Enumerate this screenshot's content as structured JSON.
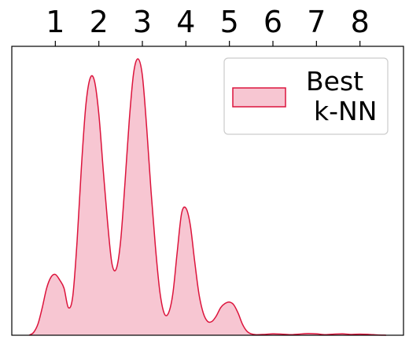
{
  "chart_data": {
    "type": "area",
    "title": "",
    "xlabel": "",
    "ylabel": "",
    "x_ticks": [
      "1",
      "2",
      "3",
      "4",
      "5",
      "6",
      "7",
      "8"
    ],
    "xlim": [
      0.0,
      9.0
    ],
    "ylim": [
      0,
      1.0
    ],
    "grid": false,
    "legend_position": "top-right",
    "series": [
      {
        "name": "Best k-NN",
        "color": "#dc143c",
        "fill_color": "#f7c6d2",
        "x": [
          0.4,
          0.5,
          0.6,
          0.7,
          0.8,
          0.9,
          1.0,
          1.1,
          1.2,
          1.3,
          1.4,
          1.5,
          1.6,
          1.7,
          1.8,
          1.9,
          2.0,
          2.1,
          2.2,
          2.3,
          2.4,
          2.5,
          2.6,
          2.7,
          2.8,
          2.9,
          3.0,
          3.1,
          3.2,
          3.3,
          3.4,
          3.5,
          3.6,
          3.7,
          3.8,
          3.9,
          4.0,
          4.1,
          4.2,
          4.3,
          4.4,
          4.5,
          4.6,
          4.7,
          4.8,
          4.9,
          5.0,
          5.1,
          5.2,
          5.3,
          5.4,
          5.5,
          5.6,
          5.8,
          6.0,
          6.2,
          6.4,
          6.6,
          6.8,
          7.0,
          7.2,
          7.4,
          7.6,
          7.8,
          8.0,
          8.2,
          8.4,
          8.6
        ],
        "y": [
          0.0,
          0.01,
          0.04,
          0.1,
          0.17,
          0.21,
          0.22,
          0.2,
          0.17,
          0.1,
          0.14,
          0.34,
          0.61,
          0.83,
          0.93,
          0.92,
          0.8,
          0.6,
          0.41,
          0.26,
          0.24,
          0.34,
          0.55,
          0.78,
          0.95,
          1.0,
          0.94,
          0.75,
          0.52,
          0.32,
          0.16,
          0.08,
          0.08,
          0.15,
          0.3,
          0.44,
          0.46,
          0.4,
          0.27,
          0.15,
          0.08,
          0.05,
          0.05,
          0.07,
          0.1,
          0.115,
          0.12,
          0.11,
          0.08,
          0.04,
          0.015,
          0.005,
          0.002,
          0.003,
          0.005,
          0.004,
          0.002,
          0.004,
          0.006,
          0.005,
          0.002,
          0.004,
          0.005,
          0.003,
          0.004,
          0.003,
          0.001,
          0.0
        ]
      }
    ],
    "legend": {
      "entries": [
        {
          "lines": [
            "Best",
            "k-NN"
          ]
        }
      ]
    }
  }
}
